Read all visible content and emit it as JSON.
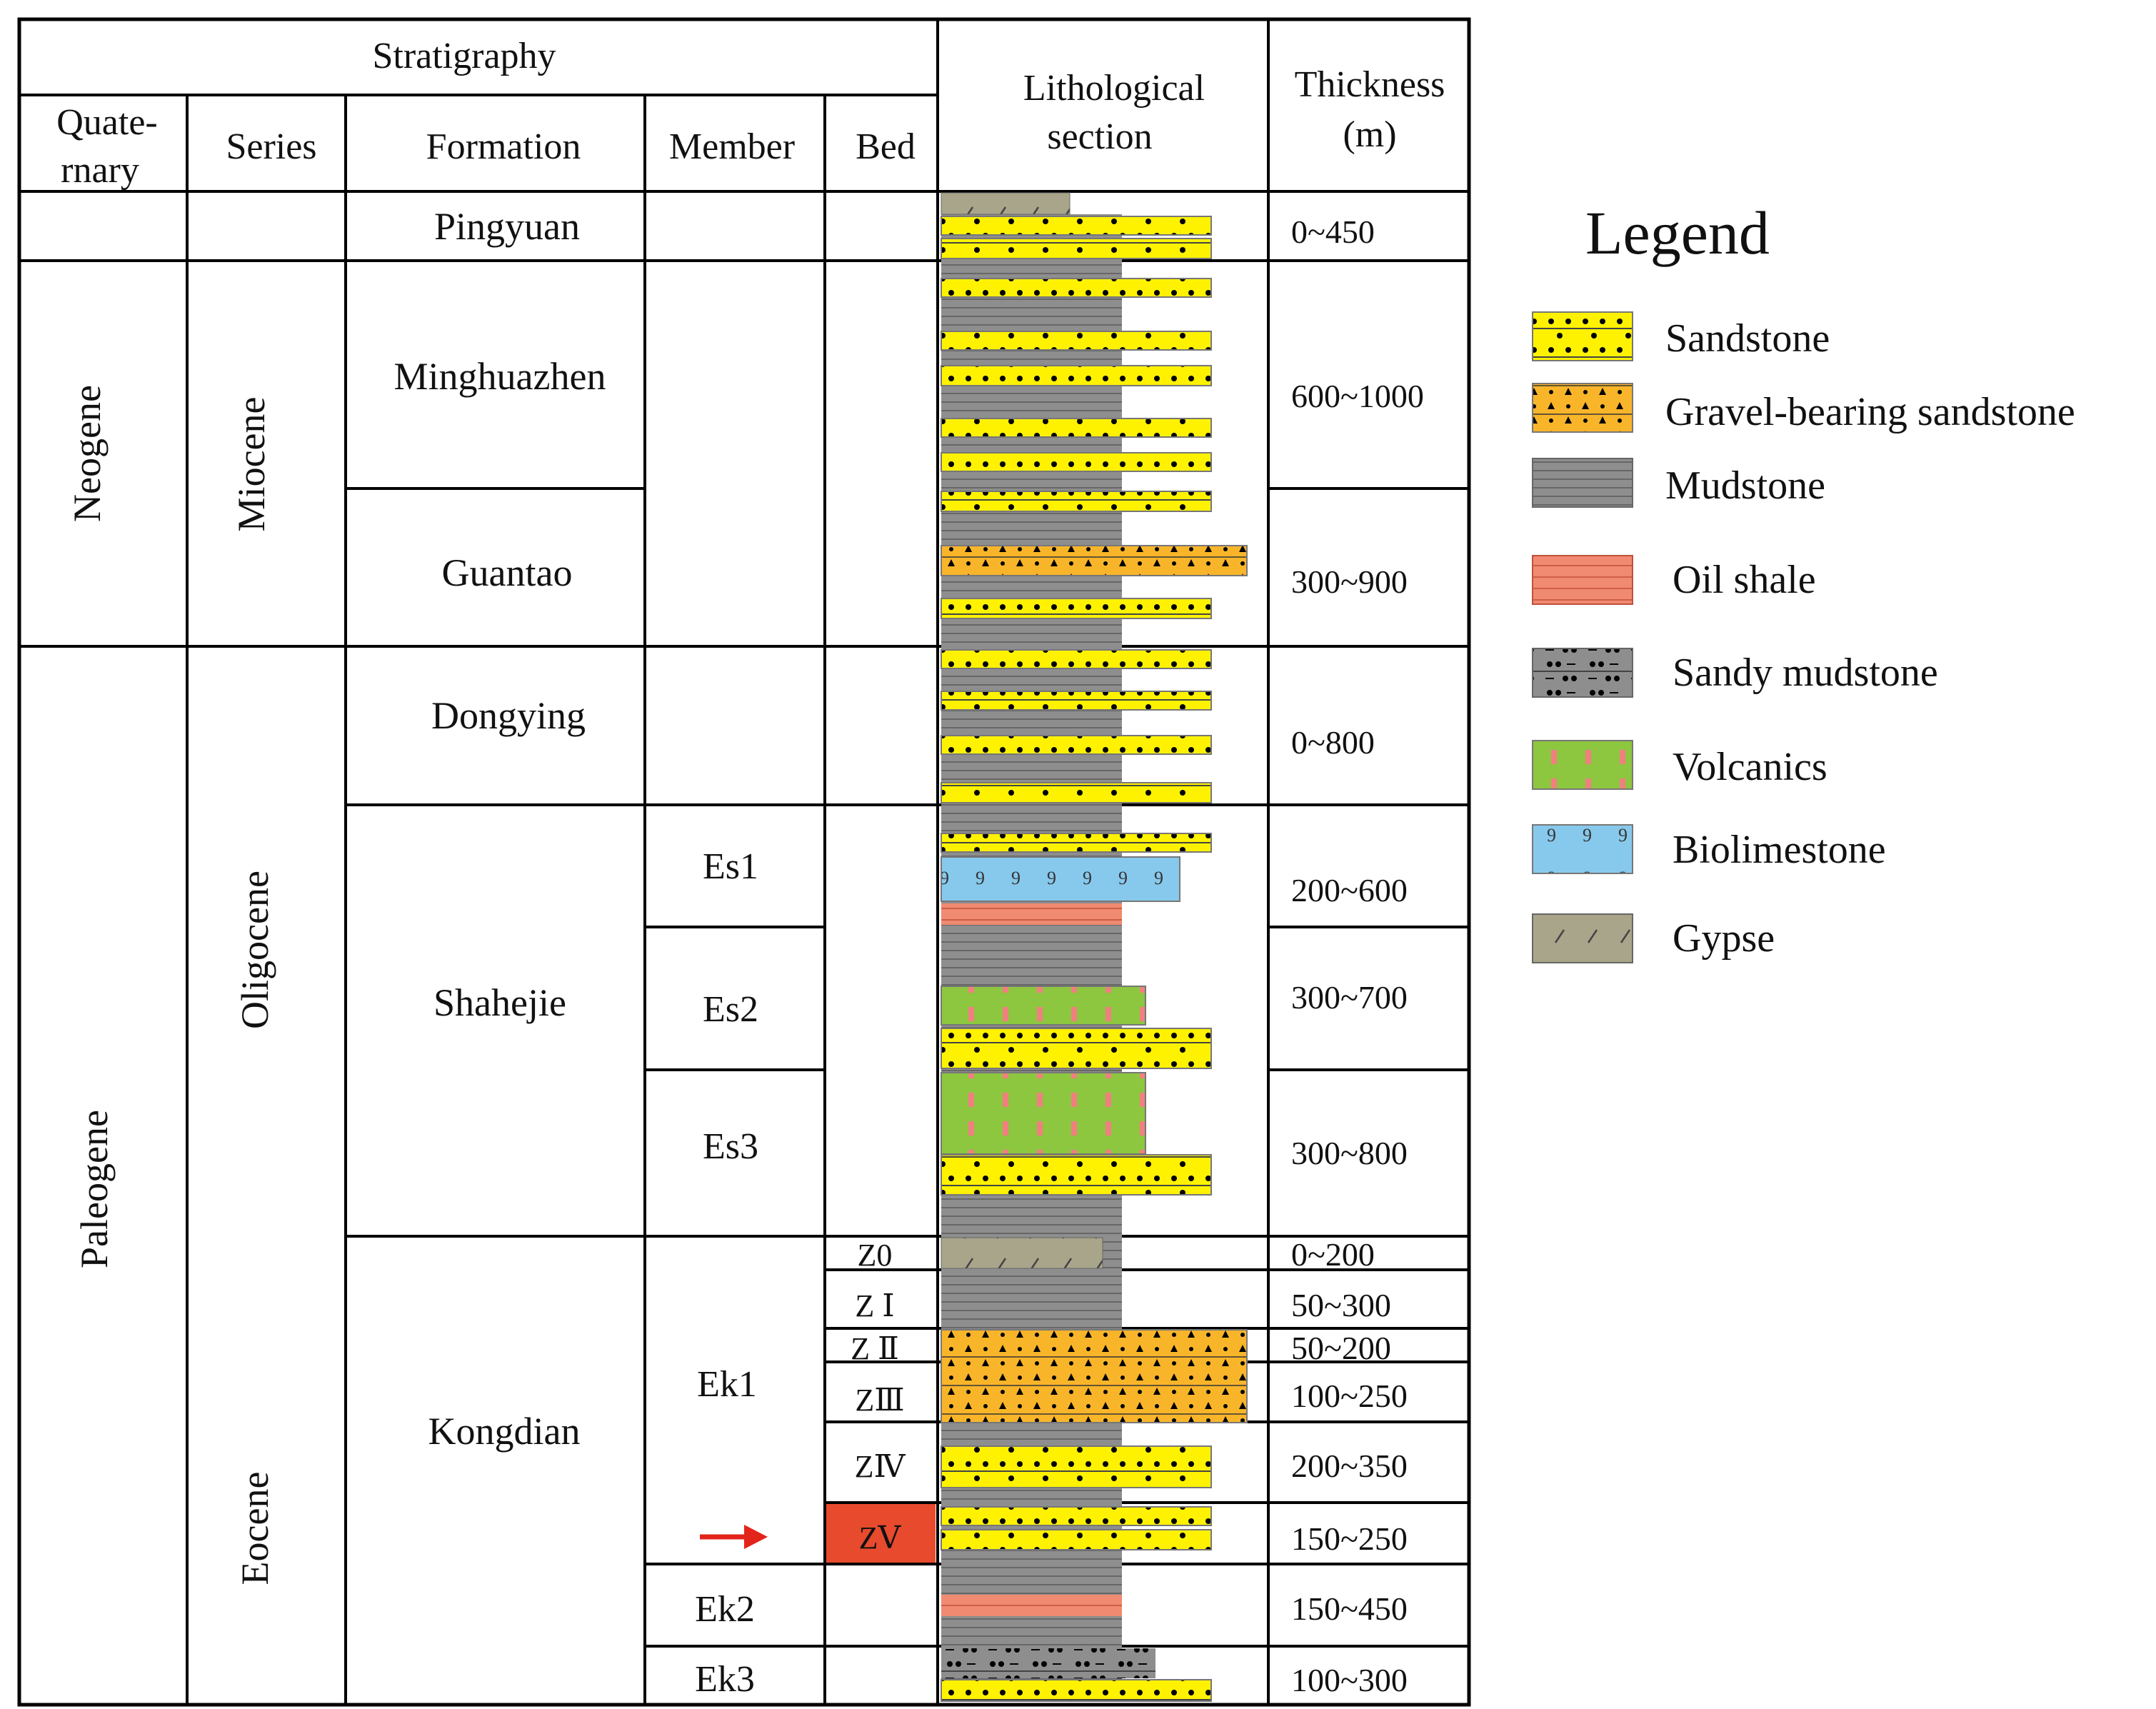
{
  "header": {
    "stratigraphy": "Stratigraphy",
    "quaternary_1": "Quate-",
    "quaternary_2": "rnary",
    "series": "Series",
    "formation": "Formation",
    "member": "Member",
    "bed": "Bed",
    "litho_1": "Lithological",
    "litho_2": "section",
    "thick_1": "Thickness",
    "thick_2": "(m)"
  },
  "systems": {
    "neogene": "Neogene",
    "paleogene": "Paleogene"
  },
  "series": {
    "miocene": "Miocene",
    "oligocene": "Oligocene",
    "eocene": "Eocene"
  },
  "formations": {
    "pingyuan": "Pingyuan",
    "minghuazhen": "Minghuazhen",
    "guantao": "Guantao",
    "dongying": "Dongying",
    "shahejie": "Shahejie",
    "kongdian": "Kongdian"
  },
  "members": {
    "es1": "Es1",
    "es2": "Es2",
    "es3": "Es3",
    "ek1": "Ek1",
    "ek2": "Ek2",
    "ek3": "Ek3"
  },
  "beds": {
    "z0": "Z0",
    "z1": "Z Ⅰ",
    "z2": "Z Ⅱ",
    "z3": "ZⅢ",
    "z4": "ZⅣ",
    "z5": "ZⅤ"
  },
  "thickness": {
    "pingyuan": "0~450",
    "minghuazhen": "600~1000",
    "guantao": "300~900",
    "dongying": "0~800",
    "es1": "200~600",
    "es2": "300~700",
    "es3": "300~800",
    "z0": "0~200",
    "z1": "50~300",
    "z2": "50~200",
    "z3": "100~250",
    "z4": "200~350",
    "z5": "150~250",
    "ek2": "150~450",
    "ek3": "100~300"
  },
  "legend": {
    "title": "Legend",
    "items": {
      "sandstone": "Sandstone",
      "gravel": "Gravel-bearing sandstone",
      "mudstone": "Mudstone",
      "oil_shale": "Oil shale",
      "sandy_mudstone": "Sandy mudstone",
      "volcanics": "Volcanics",
      "biolimestone": "Biolimestone",
      "gypse": "Gypse"
    }
  },
  "colors": {
    "sandstone": "#fff200",
    "gravel": "#f9b52a",
    "mudstone": "#8e8e8e",
    "oil_shale": "#f08a70",
    "volcanics": "#8dc63f",
    "biolimestone": "#87c9ec",
    "gypse": "#a8a58a",
    "highlight": "#e84a2e",
    "arrow": "#e3241b"
  },
  "icons": {
    "target_bed_arrow": "right-arrow-icon"
  }
}
